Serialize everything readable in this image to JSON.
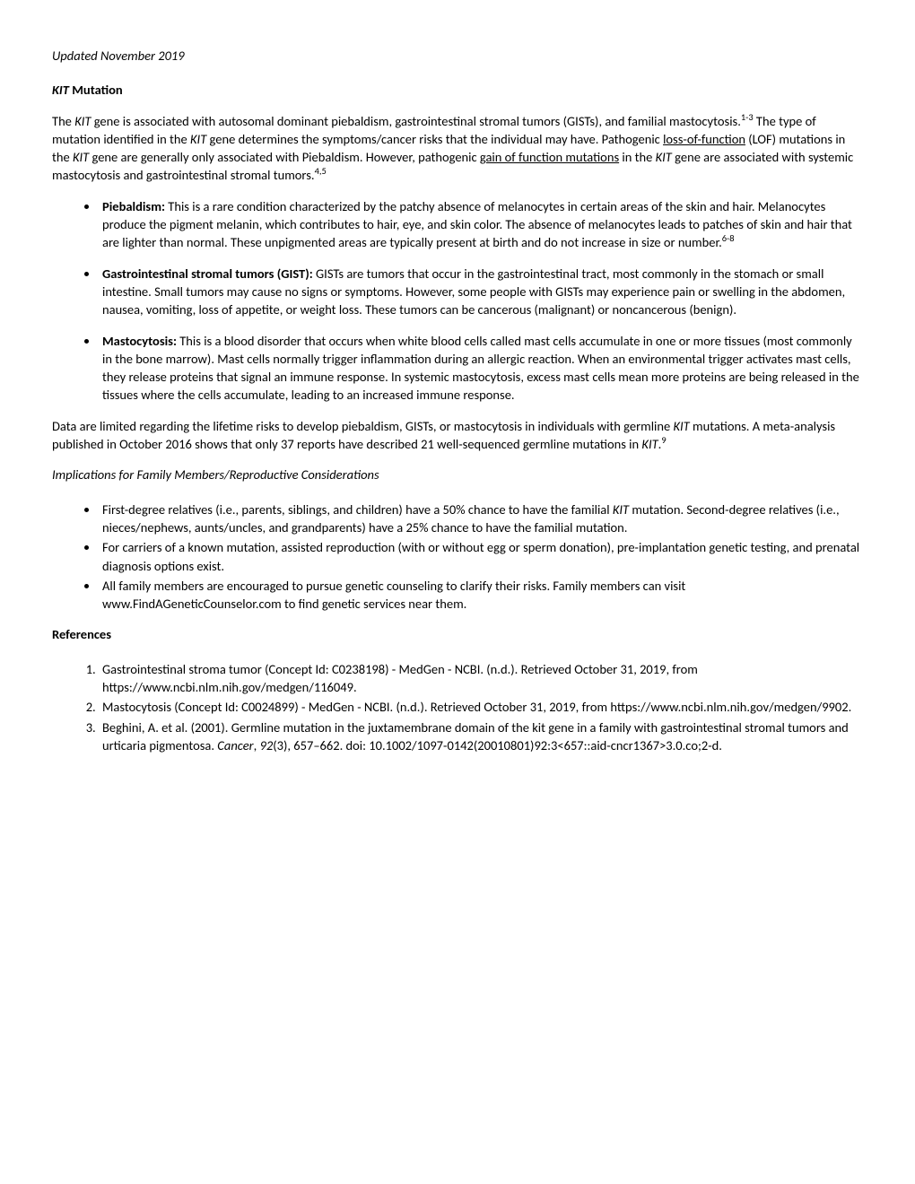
{
  "updated": "Updated November 2019",
  "title_gene": "KIT",
  "title_rest": " Mutation",
  "intro": {
    "p1a": "The ",
    "gene1": "KIT",
    "p1b": " gene is associated with autosomal dominant piebaldism, gastrointestinal stromal tumors (GISTs), and familial mastocytosis.",
    "sup1": "1-3",
    "p1c": " The type of mutation identified in the ",
    "gene2": "KIT",
    "p1d": " gene determines the symptoms/cancer risks that the individual may have. Pathogenic ",
    "lof": "loss-of-function",
    "p1e": " (LOF) mutations in the ",
    "gene3": "KIT",
    "p1f": " gene are generally only associated with Piebaldism. However, pathogenic ",
    "gof": "gain of function mutations",
    "p1g": " in the ",
    "gene4": "KIT",
    "p1h": " gene are associated with systemic mastocytosis and gastrointestinal stromal tumors.",
    "sup2": "4,5"
  },
  "conditions": {
    "piebaldism_label": "Piebaldism:",
    "piebaldism_text": " This is a rare condition characterized by the patchy absence of melanocytes in certain areas of the skin and hair. Melanocytes produce the pigment melanin, which contributes to hair, eye, and skin color. The absence of melanocytes leads to patches of skin and hair that are lighter than normal. These unpigmented areas are typically present at birth and do not increase in size or number.",
    "piebaldism_sup": "6-8",
    "gist_label": "Gastrointestinal stromal tumors (GIST):",
    "gist_text": " GISTs are tumors that occur in the gastrointestinal tract, most commonly in the stomach or small intestine. Small tumors may cause no signs or symptoms. However, some people with GISTs may experience pain or swelling in the abdomen, nausea, vomiting, loss of appetite, or weight loss. These tumors can be cancerous (malignant) or noncancerous (benign).",
    "masto_label": "Mastocytosis:",
    "masto_text": " This is a blood disorder that occurs when white blood cells called mast cells accumulate in one or more tissues (most commonly in the bone marrow). Mast cells normally trigger inflammation during an allergic reaction. When an environmental trigger activates mast cells, they release proteins that signal an immune response. In systemic mastocytosis, excess mast cells mean more proteins are being released in the tissues where the cells accumulate, leading to an increased immune response."
  },
  "data_para": {
    "a": "Data are limited regarding the lifetime risks to develop piebaldism, GISTs, or mastocytosis in individuals with germline ",
    "gene1": "KIT",
    "b": " mutations. A meta-analysis published in October 2016 shows that only 37 reports have described 21 well-sequenced germline mutations in ",
    "gene2": "KIT",
    "c": ".",
    "sup": "9"
  },
  "implications": {
    "title": "Implications for Family Members/Reproductive Considerations",
    "item1a": "First-degree relatives (i.e., parents, siblings, and children) have a 50% chance to have the familial ",
    "item1gene": "KIT",
    "item1b": " mutation. Second-degree relatives (i.e., nieces/nephews, aunts/uncles, and grandparents) have a 25% chance to have the familial mutation.",
    "item2": "For carriers of a known mutation, assisted reproduction (with or without egg or sperm donation), pre-implantation genetic testing, and prenatal diagnosis options exist.",
    "item3": "All family members are encouraged to pursue genetic counseling to clarify their risks. Family members can visit www.FindAGeneticCounselor.com to find genetic services near them."
  },
  "references": {
    "title": "References",
    "r1": "Gastrointestinal stroma tumor (Concept Id: C0238198) - MedGen - NCBI. (n.d.). Retrieved October 31, 2019, from https://www.ncbi.nlm.nih.gov/medgen/116049.",
    "r2": "Mastocytosis (Concept Id: C0024899) - MedGen - NCBI. (n.d.). Retrieved October 31, 2019, from https://www.ncbi.nlm.nih.gov/medgen/9902.",
    "r3a": "Beghini, A. et al. (2001). Germline mutation in the juxtamembrane domain of the kit gene in a family with gastrointestinal stromal tumors and urticaria pigmentosa. ",
    "r3journal": "Cancer",
    "r3b": ", ",
    "r3vol": "92",
    "r3c": "(3), 657–662. doi: 10.1002/1097-0142(20010801)92:3<657::aid-cncr1367>3.0.co;2-d."
  }
}
